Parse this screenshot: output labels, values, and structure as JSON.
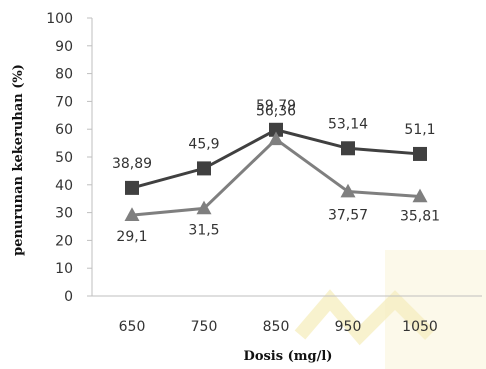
{
  "chart_data": {
    "type": "line",
    "categories": [
      "650",
      "750",
      "850",
      "950",
      "1050"
    ],
    "xlabel": "Dosis (mg/l)",
    "ylabel": "penurunan kekeruhan (%)",
    "ylim": [
      0,
      100
    ],
    "yticks": [
      "0",
      "10",
      "20",
      "30",
      "40",
      "50",
      "60",
      "70",
      "80",
      "90",
      "100"
    ],
    "grid": false,
    "legend": "none",
    "series": [
      {
        "marker": "square",
        "color": "#404040",
        "values": [
          38.89,
          45.9,
          59.79,
          53.14,
          51.1
        ],
        "labels": [
          "38,89",
          "45,9",
          "59,79",
          "53,14",
          "51,1"
        ]
      },
      {
        "marker": "triangle",
        "color": "#7f7f7f",
        "values": [
          29.1,
          31.5,
          56.36,
          37.57,
          35.81
        ],
        "labels": [
          "29,1",
          "31,5",
          "56,36",
          "37,57",
          "35,81"
        ]
      }
    ]
  },
  "colors": {
    "axis": "#bfbfbf",
    "watermark": "#f3e7a6"
  }
}
